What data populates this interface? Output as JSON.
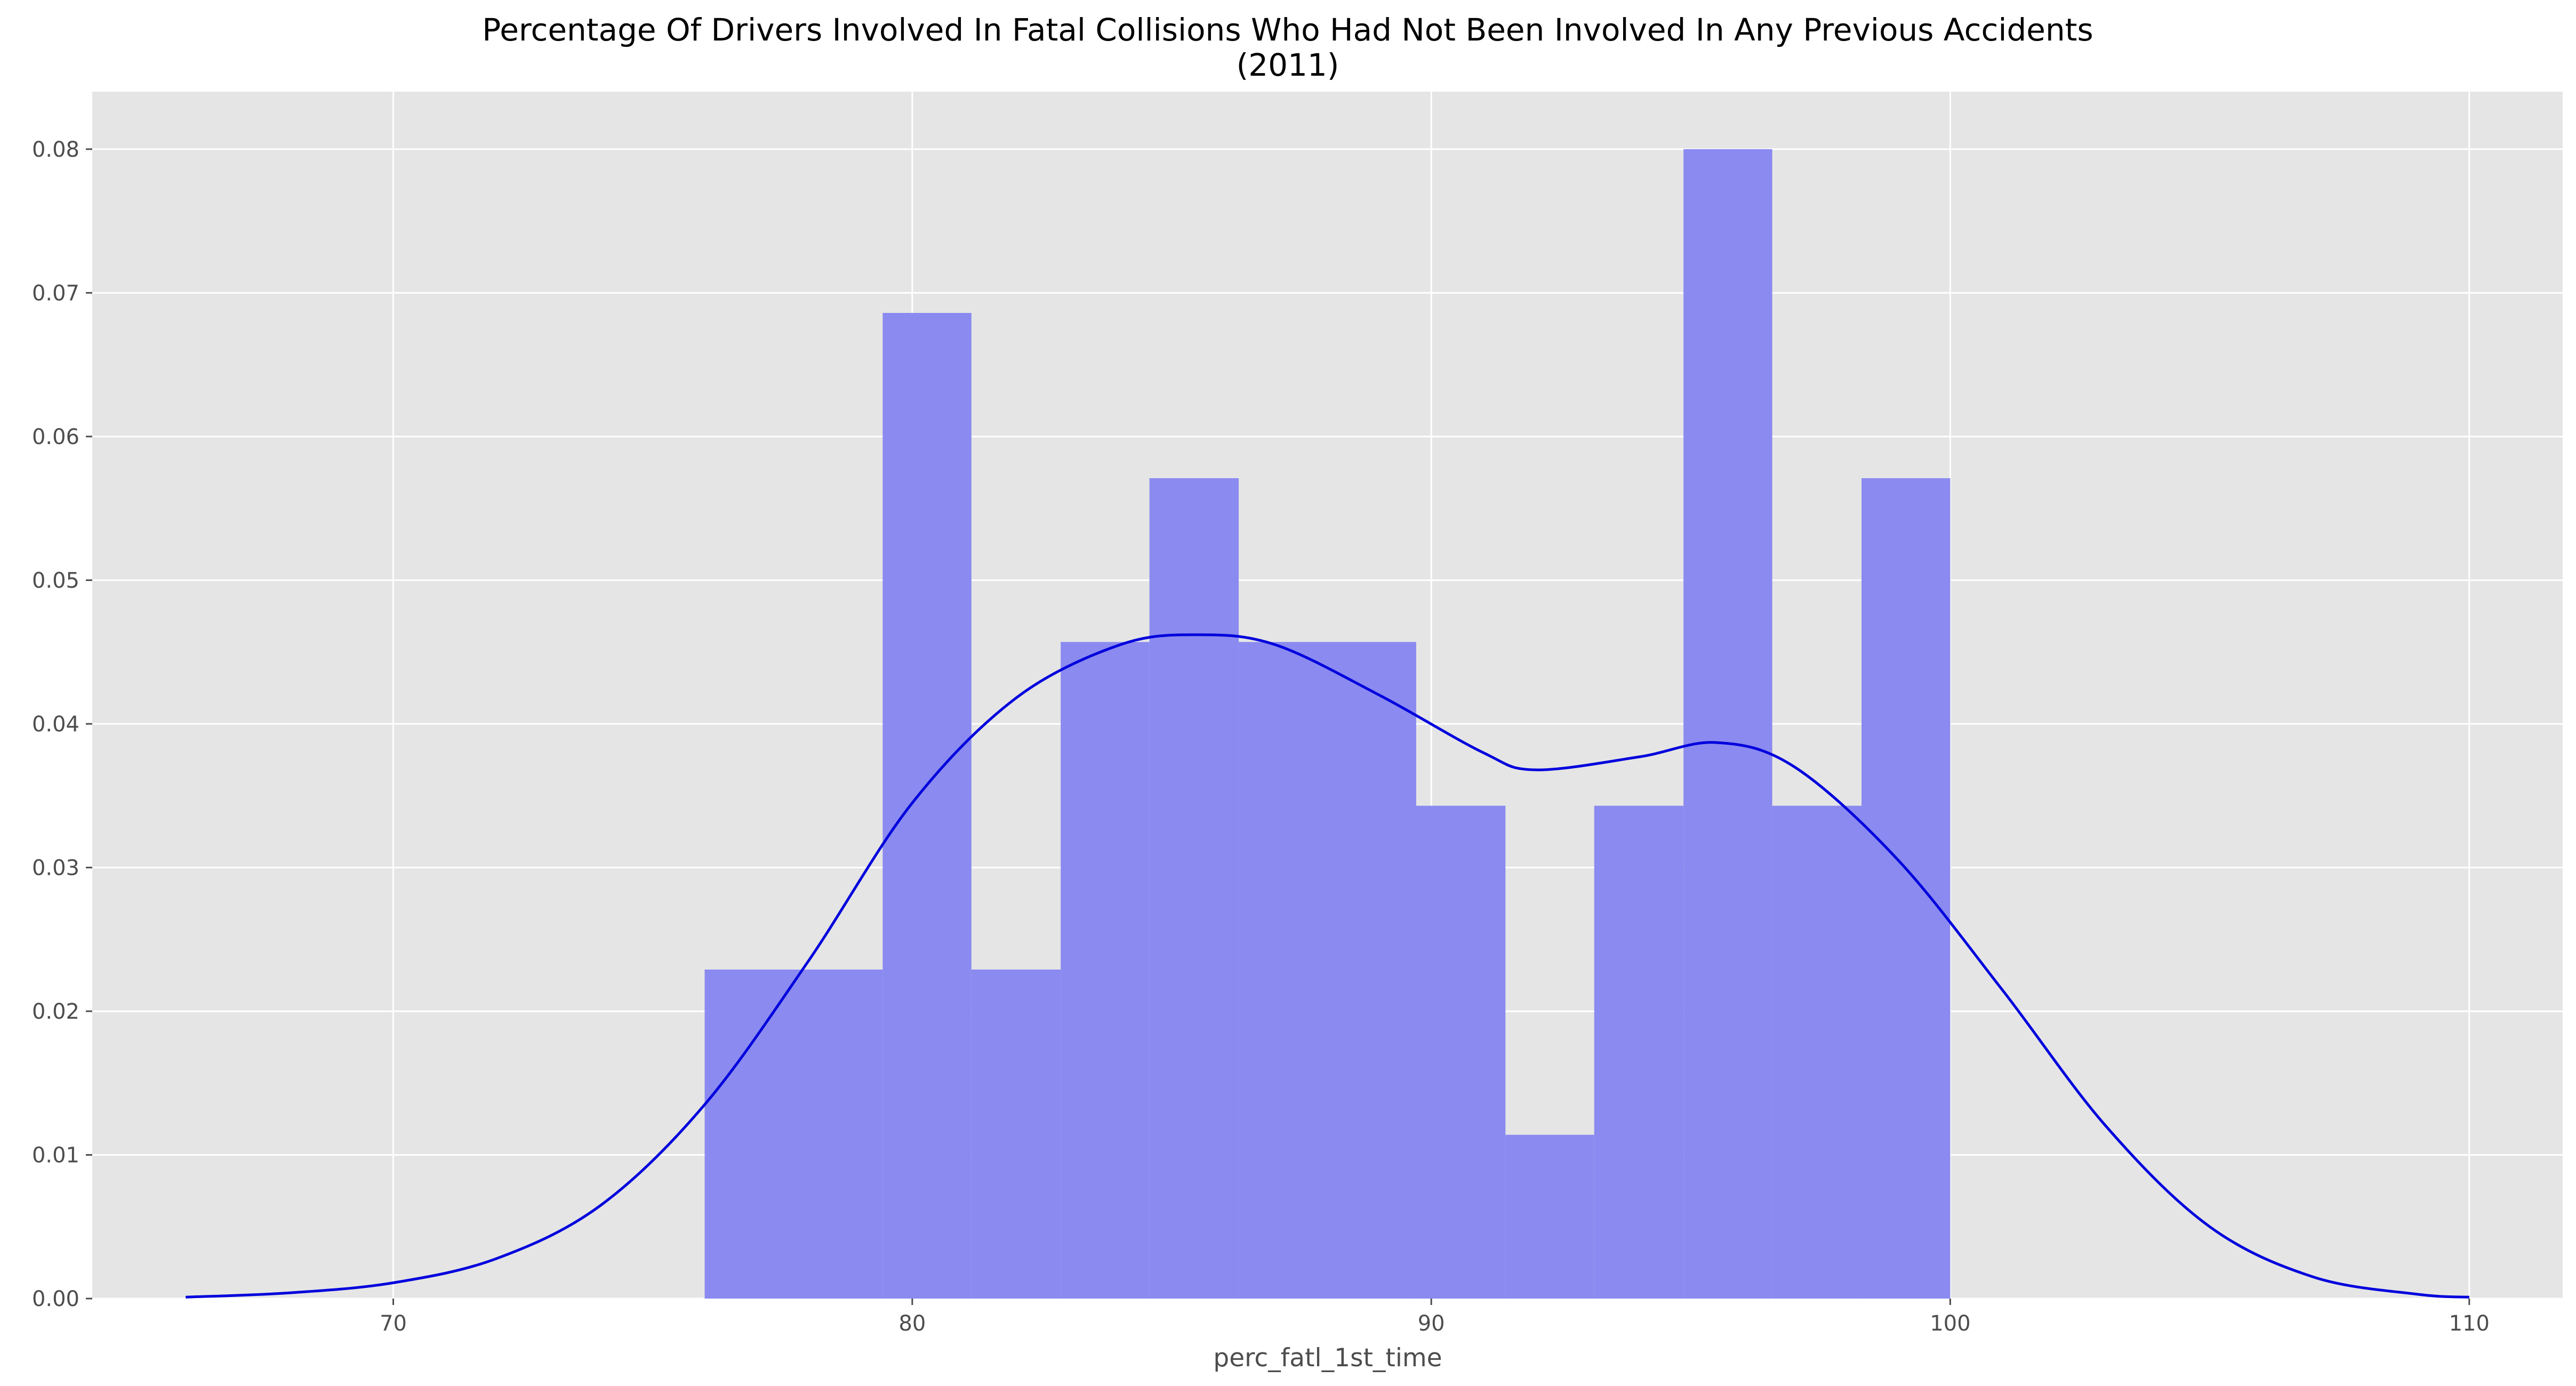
{
  "chart_data": {
    "type": "bar",
    "title": "Percentage Of Drivers Involved In Fatal Collisions Who Had Not Been Involved In Any Previous Accidents",
    "subtitle": "(2011)",
    "xlabel": "perc_fatl_1st_time",
    "ylabel": "",
    "xlim": [
      64.2,
      111.8
    ],
    "ylim": [
      0,
      0.084
    ],
    "x_ticks": [
      70,
      80,
      90,
      100,
      110
    ],
    "y_ticks": [
      0.0,
      0.01,
      0.02,
      0.03,
      0.04,
      0.05,
      0.06,
      0.07,
      0.08
    ],
    "grid": true,
    "series": [
      {
        "type": "histogram",
        "color": "#8a8af0",
        "bins": [
          {
            "x0": 76.0,
            "x1": 79.43,
            "value": 0.0229
          },
          {
            "x0": 79.43,
            "x1": 81.14,
            "value": 0.0686
          },
          {
            "x0": 81.14,
            "x1": 82.86,
            "value": 0.0229
          },
          {
            "x0": 82.86,
            "x1": 84.57,
            "value": 0.0457
          },
          {
            "x0": 84.57,
            "x1": 86.29,
            "value": 0.0571
          },
          {
            "x0": 86.29,
            "x1": 89.71,
            "value": 0.0457
          },
          {
            "x0": 89.71,
            "x1": 91.43,
            "value": 0.0343
          },
          {
            "x0": 91.43,
            "x1": 93.14,
            "value": 0.0114
          },
          {
            "x0": 93.14,
            "x1": 94.86,
            "value": 0.0343
          },
          {
            "x0": 94.86,
            "x1": 96.57,
            "value": 0.08
          },
          {
            "x0": 96.57,
            "x1": 98.29,
            "value": 0.0343
          },
          {
            "x0": 98.29,
            "x1": 100.0,
            "value": 0.0571
          }
        ]
      },
      {
        "type": "line",
        "color": "#0000dd",
        "x": [
          66,
          68,
          70,
          72,
          74,
          76,
          78,
          80,
          82,
          84,
          85.5,
          87,
          89,
          91,
          92,
          94,
          95.5,
          97,
          99,
          101,
          103,
          105,
          107,
          109,
          110
        ],
        "y": [
          0.0001,
          0.0004,
          0.0011,
          0.0028,
          0.0065,
          0.0135,
          0.0235,
          0.0345,
          0.0418,
          0.0455,
          0.0462,
          0.0455,
          0.042,
          0.038,
          0.0368,
          0.0377,
          0.0387,
          0.037,
          0.0305,
          0.0215,
          0.012,
          0.005,
          0.0015,
          0.0003,
          0.0001
        ]
      }
    ]
  }
}
